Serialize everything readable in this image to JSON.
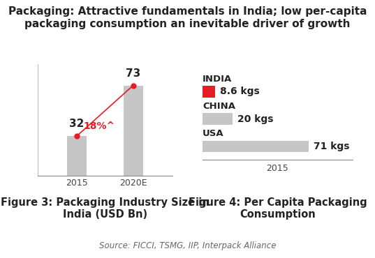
{
  "title": "Packaging: Attractive fundamentals in India; low per-capita packaging consumption an inevitable driver of growth",
  "source": "Source: FICCI, TSMG, IIP, Interpack Alliance",
  "chart_data": [
    {
      "type": "bar",
      "title": "Figure 3: Packaging Industry Size in India (USD Bn)",
      "categories": [
        "2015",
        "2020E"
      ],
      "values": [
        32,
        73
      ],
      "color": "#c6c6c6",
      "ylim": [
        0,
        90
      ],
      "data_labels": true,
      "tick_labels": "x",
      "annotations": [
        "18%^"
      ]
    },
    {
      "type": "bar",
      "orientation": "horizontal",
      "title": "Figure 4: Per Capita Packaging Consumption",
      "x_label": "2015",
      "categories": [
        "INDIA",
        "CHINA",
        "USA"
      ],
      "values": [
        8.6,
        20,
        71
      ],
      "value_labels": [
        "8.6 kgs",
        "20 kgs",
        "71 kgs"
      ],
      "colors": [
        "#e31e24",
        "#c6c6c6",
        "#c6c6c6"
      ],
      "xlim": [
        0,
        100
      ],
      "data_labels": true,
      "tick_labels": false
    }
  ]
}
